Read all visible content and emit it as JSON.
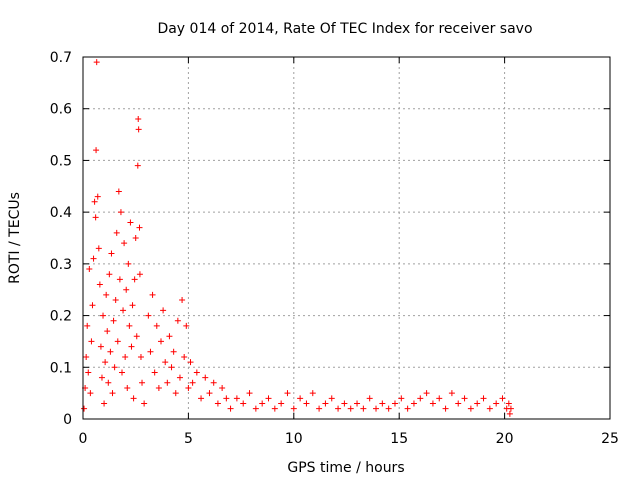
{
  "chart_data": {
    "type": "scatter",
    "title": "Day 014 of 2014, Rate Of TEC Index for receiver savo",
    "xlabel": "GPS time / hours",
    "ylabel": "ROTI / TECUs",
    "xlim": [
      0,
      25
    ],
    "ylim": [
      0,
      0.7
    ],
    "xticks": [
      0,
      5,
      10,
      15,
      20,
      25
    ],
    "yticks": [
      0,
      0.1,
      0.2,
      0.3,
      0.4,
      0.5,
      0.6,
      0.7
    ],
    "xtick_labels": [
      "0",
      "5",
      "10",
      "15",
      "20",
      "25"
    ],
    "ytick_labels": [
      "0",
      "0.1",
      "0.2",
      "0.3",
      "0.4",
      "0.5",
      "0.6",
      "0.7"
    ],
    "grid": true,
    "marker": "+",
    "color": "#ff0000",
    "series": [
      {
        "name": "ROTI",
        "points": [
          [
            0.05,
            0.02
          ],
          [
            0.1,
            0.06
          ],
          [
            0.15,
            0.12
          ],
          [
            0.2,
            0.18
          ],
          [
            0.25,
            0.09
          ],
          [
            0.3,
            0.29
          ],
          [
            0.35,
            0.05
          ],
          [
            0.4,
            0.15
          ],
          [
            0.45,
            0.22
          ],
          [
            0.5,
            0.31
          ],
          [
            0.55,
            0.42
          ],
          [
            0.6,
            0.39
          ],
          [
            0.62,
            0.52
          ],
          [
            0.65,
            0.69
          ],
          [
            0.7,
            0.43
          ],
          [
            0.75,
            0.33
          ],
          [
            0.8,
            0.26
          ],
          [
            0.85,
            0.14
          ],
          [
            0.9,
            0.08
          ],
          [
            0.95,
            0.2
          ],
          [
            1.0,
            0.03
          ],
          [
            1.05,
            0.11
          ],
          [
            1.1,
            0.24
          ],
          [
            1.15,
            0.17
          ],
          [
            1.2,
            0.07
          ],
          [
            1.25,
            0.28
          ],
          [
            1.3,
            0.13
          ],
          [
            1.35,
            0.32
          ],
          [
            1.4,
            0.05
          ],
          [
            1.45,
            0.19
          ],
          [
            1.5,
            0.1
          ],
          [
            1.55,
            0.23
          ],
          [
            1.6,
            0.36
          ],
          [
            1.65,
            0.15
          ],
          [
            1.7,
            0.44
          ],
          [
            1.75,
            0.27
          ],
          [
            1.8,
            0.4
          ],
          [
            1.85,
            0.09
          ],
          [
            1.9,
            0.21
          ],
          [
            1.95,
            0.34
          ],
          [
            2.0,
            0.12
          ],
          [
            2.05,
            0.25
          ],
          [
            2.1,
            0.06
          ],
          [
            2.15,
            0.3
          ],
          [
            2.2,
            0.18
          ],
          [
            2.25,
            0.38
          ],
          [
            2.3,
            0.14
          ],
          [
            2.35,
            0.22
          ],
          [
            2.4,
            0.04
          ],
          [
            2.45,
            0.27
          ],
          [
            2.5,
            0.35
          ],
          [
            2.55,
            0.16
          ],
          [
            2.6,
            0.49
          ],
          [
            2.62,
            0.58
          ],
          [
            2.64,
            0.56
          ],
          [
            2.68,
            0.37
          ],
          [
            2.7,
            0.28
          ],
          [
            2.75,
            0.12
          ],
          [
            2.8,
            0.07
          ],
          [
            2.9,
            0.03
          ],
          [
            3.1,
            0.2
          ],
          [
            3.2,
            0.13
          ],
          [
            3.3,
            0.24
          ],
          [
            3.4,
            0.09
          ],
          [
            3.5,
            0.18
          ],
          [
            3.6,
            0.06
          ],
          [
            3.7,
            0.15
          ],
          [
            3.8,
            0.21
          ],
          [
            3.9,
            0.11
          ],
          [
            4.0,
            0.07
          ],
          [
            4.1,
            0.16
          ],
          [
            4.2,
            0.1
          ],
          [
            4.3,
            0.13
          ],
          [
            4.4,
            0.05
          ],
          [
            4.5,
            0.19
          ],
          [
            4.6,
            0.08
          ],
          [
            4.7,
            0.23
          ],
          [
            4.8,
            0.12
          ],
          [
            4.9,
            0.18
          ],
          [
            5.0,
            0.06
          ],
          [
            5.1,
            0.11
          ],
          [
            5.2,
            0.07
          ],
          [
            5.4,
            0.09
          ],
          [
            5.6,
            0.04
          ],
          [
            5.8,
            0.08
          ],
          [
            6.0,
            0.05
          ],
          [
            6.2,
            0.07
          ],
          [
            6.4,
            0.03
          ],
          [
            6.6,
            0.06
          ],
          [
            6.8,
            0.04
          ],
          [
            7.0,
            0.02
          ],
          [
            7.3,
            0.04
          ],
          [
            7.6,
            0.03
          ],
          [
            7.9,
            0.05
          ],
          [
            8.2,
            0.02
          ],
          [
            8.5,
            0.03
          ],
          [
            8.8,
            0.04
          ],
          [
            9.1,
            0.02
          ],
          [
            9.4,
            0.03
          ],
          [
            9.7,
            0.05
          ],
          [
            10.0,
            0.02
          ],
          [
            10.3,
            0.04
          ],
          [
            10.6,
            0.03
          ],
          [
            10.9,
            0.05
          ],
          [
            11.2,
            0.02
          ],
          [
            11.5,
            0.03
          ],
          [
            11.8,
            0.04
          ],
          [
            12.1,
            0.02
          ],
          [
            12.4,
            0.03
          ],
          [
            12.7,
            0.02
          ],
          [
            13.0,
            0.03
          ],
          [
            13.3,
            0.02
          ],
          [
            13.6,
            0.04
          ],
          [
            13.9,
            0.02
          ],
          [
            14.2,
            0.03
          ],
          [
            14.5,
            0.02
          ],
          [
            14.8,
            0.03
          ],
          [
            15.1,
            0.04
          ],
          [
            15.4,
            0.02
          ],
          [
            15.7,
            0.03
          ],
          [
            16.0,
            0.04
          ],
          [
            16.3,
            0.05
          ],
          [
            16.6,
            0.03
          ],
          [
            16.9,
            0.04
          ],
          [
            17.2,
            0.02
          ],
          [
            17.5,
            0.05
          ],
          [
            17.8,
            0.03
          ],
          [
            18.1,
            0.04
          ],
          [
            18.4,
            0.02
          ],
          [
            18.7,
            0.03
          ],
          [
            19.0,
            0.04
          ],
          [
            19.3,
            0.02
          ],
          [
            19.6,
            0.03
          ],
          [
            19.9,
            0.04
          ],
          [
            20.1,
            0.02
          ],
          [
            20.2,
            0.03
          ],
          [
            20.25,
            0.01
          ],
          [
            20.3,
            0.02
          ]
        ]
      }
    ]
  }
}
